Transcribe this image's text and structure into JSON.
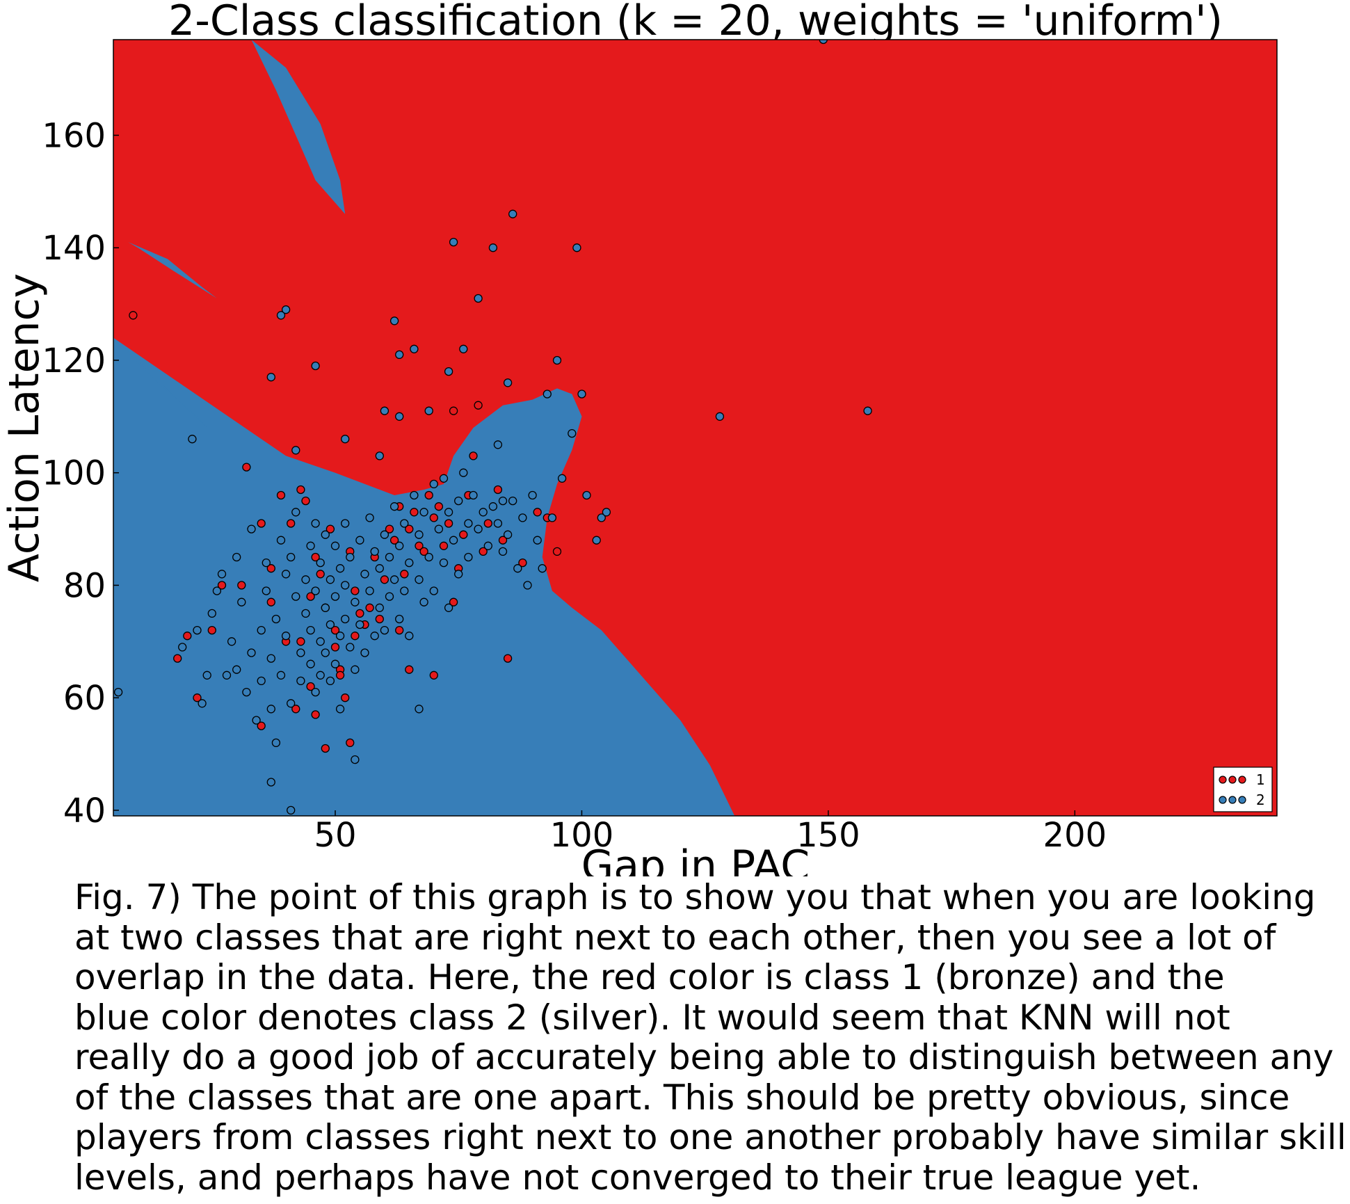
{
  "chart_data": {
    "type": "scatter",
    "title": "2-Class classification (k = 20, weights = 'uniform')",
    "xlabel": "Gap in PAC",
    "ylabel": "Action Latency",
    "xlim": [
      5,
      241
    ],
    "ylim": [
      39,
      177
    ],
    "xticks": [
      50,
      100,
      150,
      200
    ],
    "yticks": [
      40,
      60,
      80,
      100,
      120,
      140,
      160
    ],
    "grid": false,
    "legend": {
      "placement": "bottom-right",
      "entries": [
        "1",
        "2"
      ]
    },
    "colors": {
      "class_1": "#e41a1c",
      "class_2": "#377eb8",
      "marker_edge": "#000000"
    },
    "decision_regions": {
      "background_class": "1",
      "class_2_regions": [
        [
          [
            5,
            124
          ],
          [
            40,
            103
          ],
          [
            50,
            100
          ],
          [
            56,
            98
          ],
          [
            62,
            96
          ],
          [
            68,
            97
          ],
          [
            72,
            98
          ],
          [
            74,
            103
          ],
          [
            78,
            108
          ],
          [
            84,
            112
          ],
          [
            90,
            113
          ],
          [
            95,
            115
          ],
          [
            98,
            114
          ],
          [
            100,
            110
          ],
          [
            98,
            104
          ],
          [
            95,
            98
          ],
          [
            93,
            92
          ],
          [
            92,
            85
          ],
          [
            94,
            79
          ],
          [
            98,
            76
          ],
          [
            104,
            72
          ],
          [
            108,
            68
          ],
          [
            114,
            62
          ],
          [
            120,
            56
          ],
          [
            126,
            48
          ],
          [
            131,
            39
          ],
          [
            5,
            39
          ]
        ],
        [
          [
            33,
            177
          ],
          [
            40,
            172
          ],
          [
            47,
            162
          ],
          [
            51,
            152
          ],
          [
            52,
            146
          ],
          [
            46,
            152
          ],
          [
            42,
            160
          ],
          [
            38,
            168
          ]
        ],
        [
          [
            8,
            141
          ],
          [
            16,
            138
          ],
          [
            23,
            133
          ],
          [
            26,
            131
          ],
          [
            17,
            136
          ],
          [
            10,
            140
          ]
        ],
        [
          [
            5,
            124
          ],
          [
            14,
            116
          ],
          [
            22,
            110
          ],
          [
            24,
            108
          ],
          [
            18,
            113
          ],
          [
            10,
            120
          ]
        ]
      ]
    },
    "series": [
      {
        "name": "1",
        "color": "#e41a1c",
        "points": [
          [
            9,
            128
          ],
          [
            18,
            67
          ],
          [
            20,
            71
          ],
          [
            22,
            60
          ],
          [
            25,
            72
          ],
          [
            27,
            80
          ],
          [
            31,
            80
          ],
          [
            32,
            101
          ],
          [
            35,
            91
          ],
          [
            37,
            83
          ],
          [
            37,
            77
          ],
          [
            39,
            96
          ],
          [
            40,
            70
          ],
          [
            41,
            91
          ],
          [
            43,
            97
          ],
          [
            43,
            70
          ],
          [
            44,
            95
          ],
          [
            45,
            62
          ],
          [
            45,
            78
          ],
          [
            46,
            85
          ],
          [
            47,
            82
          ],
          [
            48,
            76
          ],
          [
            49,
            90
          ],
          [
            50,
            69
          ],
          [
            51,
            65
          ],
          [
            52,
            60
          ],
          [
            53,
            86
          ],
          [
            54,
            79
          ],
          [
            55,
            75
          ],
          [
            56,
            73
          ],
          [
            58,
            85
          ],
          [
            59,
            74
          ],
          [
            60,
            81
          ],
          [
            61,
            90
          ],
          [
            62,
            88
          ],
          [
            63,
            94
          ],
          [
            64,
            82
          ],
          [
            65,
            90
          ],
          [
            66,
            93
          ],
          [
            67,
            87
          ],
          [
            68,
            86
          ],
          [
            69,
            96
          ],
          [
            70,
            92
          ],
          [
            71,
            94
          ],
          [
            72,
            87
          ],
          [
            73,
            91
          ],
          [
            74,
            77
          ],
          [
            75,
            83
          ],
          [
            76,
            89
          ],
          [
            77,
            96
          ],
          [
            78,
            103
          ],
          [
            80,
            86
          ],
          [
            81,
            91
          ],
          [
            83,
            97
          ],
          [
            84,
            88
          ],
          [
            85,
            67
          ],
          [
            88,
            84
          ],
          [
            91,
            93
          ],
          [
            93,
            92
          ],
          [
            95,
            86
          ],
          [
            46,
            57
          ],
          [
            48,
            51
          ],
          [
            51,
            64
          ],
          [
            42,
            58
          ],
          [
            53,
            52
          ],
          [
            35,
            55
          ],
          [
            50,
            72
          ],
          [
            54,
            71
          ],
          [
            57,
            76
          ],
          [
            63,
            72
          ],
          [
            65,
            65
          ],
          [
            70,
            64
          ],
          [
            74,
            111
          ],
          [
            79,
            112
          ]
        ]
      },
      {
        "name": "2",
        "color": "#377eb8",
        "points": [
          [
            6,
            61
          ],
          [
            19,
            69
          ],
          [
            21,
            106
          ],
          [
            22,
            72
          ],
          [
            23,
            59
          ],
          [
            24,
            64
          ],
          [
            25,
            75
          ],
          [
            26,
            79
          ],
          [
            27,
            82
          ],
          [
            28,
            64
          ],
          [
            29,
            70
          ],
          [
            30,
            65
          ],
          [
            30,
            85
          ],
          [
            31,
            77
          ],
          [
            32,
            61
          ],
          [
            33,
            90
          ],
          [
            33,
            68
          ],
          [
            34,
            56
          ],
          [
            35,
            72
          ],
          [
            35,
            63
          ],
          [
            36,
            84
          ],
          [
            36,
            79
          ],
          [
            37,
            67
          ],
          [
            37,
            58
          ],
          [
            38,
            74
          ],
          [
            38,
            52
          ],
          [
            39,
            88
          ],
          [
            39,
            64
          ],
          [
            40,
            82
          ],
          [
            40,
            71
          ],
          [
            41,
            59
          ],
          [
            41,
            85
          ],
          [
            42,
            93
          ],
          [
            42,
            78
          ],
          [
            43,
            68
          ],
          [
            43,
            63
          ],
          [
            44,
            81
          ],
          [
            44,
            75
          ],
          [
            45,
            87
          ],
          [
            45,
            72
          ],
          [
            45,
            66
          ],
          [
            46,
            91
          ],
          [
            46,
            79
          ],
          [
            46,
            61
          ],
          [
            47,
            84
          ],
          [
            47,
            70
          ],
          [
            47,
            64
          ],
          [
            48,
            89
          ],
          [
            48,
            76
          ],
          [
            48,
            68
          ],
          [
            49,
            81
          ],
          [
            49,
            73
          ],
          [
            49,
            63
          ],
          [
            50,
            87
          ],
          [
            50,
            78
          ],
          [
            50,
            66
          ],
          [
            51,
            83
          ],
          [
            51,
            71
          ],
          [
            51,
            58
          ],
          [
            52,
            91
          ],
          [
            52,
            80
          ],
          [
            52,
            74
          ],
          [
            53,
            69
          ],
          [
            53,
            85
          ],
          [
            54,
            77
          ],
          [
            54,
            65
          ],
          [
            55,
            88
          ],
          [
            55,
            73
          ],
          [
            56,
            82
          ],
          [
            56,
            68
          ],
          [
            57,
            92
          ],
          [
            57,
            79
          ],
          [
            58,
            86
          ],
          [
            58,
            71
          ],
          [
            59,
            83
          ],
          [
            59,
            76
          ],
          [
            60,
            89
          ],
          [
            60,
            72
          ],
          [
            61,
            85
          ],
          [
            61,
            78
          ],
          [
            62,
            94
          ],
          [
            62,
            81
          ],
          [
            63,
            87
          ],
          [
            63,
            74
          ],
          [
            64,
            91
          ],
          [
            64,
            79
          ],
          [
            65,
            84
          ],
          [
            65,
            71
          ],
          [
            66,
            96
          ],
          [
            67,
            89
          ],
          [
            67,
            81
          ],
          [
            68,
            93
          ],
          [
            68,
            77
          ],
          [
            69,
            85
          ],
          [
            70,
            98
          ],
          [
            70,
            79
          ],
          [
            71,
            90
          ],
          [
            72,
            84
          ],
          [
            72,
            99
          ],
          [
            73,
            93
          ],
          [
            73,
            76
          ],
          [
            74,
            88
          ],
          [
            75,
            95
          ],
          [
            75,
            82
          ],
          [
            76,
            100
          ],
          [
            77,
            91
          ],
          [
            77,
            85
          ],
          [
            78,
            96
          ],
          [
            79,
            90
          ],
          [
            80,
            93
          ],
          [
            81,
            87
          ],
          [
            82,
            94
          ],
          [
            83,
            91
          ],
          [
            84,
            86
          ],
          [
            85,
            89
          ],
          [
            86,
            95
          ],
          [
            87,
            83
          ],
          [
            88,
            92
          ],
          [
            89,
            80
          ],
          [
            90,
            96
          ],
          [
            91,
            88
          ],
          [
            92,
            83
          ],
          [
            94,
            92
          ],
          [
            96,
            99
          ],
          [
            98,
            107
          ],
          [
            100,
            114
          ],
          [
            101,
            96
          ],
          [
            103,
            88
          ],
          [
            104,
            92
          ],
          [
            105,
            93
          ],
          [
            39,
            128
          ],
          [
            40,
            129
          ],
          [
            37,
            117
          ],
          [
            46,
            119
          ],
          [
            62,
            127
          ],
          [
            63,
            121
          ],
          [
            66,
            122
          ],
          [
            60,
            111
          ],
          [
            63,
            110
          ],
          [
            69,
            111
          ],
          [
            74,
            141
          ],
          [
            79,
            131
          ],
          [
            82,
            140
          ],
          [
            86,
            146
          ],
          [
            99,
            140
          ],
          [
            95,
            120
          ],
          [
            93,
            114
          ],
          [
            85,
            116
          ],
          [
            83,
            105
          ],
          [
            84,
            95
          ],
          [
            67,
            58
          ],
          [
            54,
            49
          ],
          [
            37,
            45
          ],
          [
            41,
            40
          ],
          [
            73,
            118
          ],
          [
            76,
            122
          ],
          [
            42,
            104
          ],
          [
            52,
            106
          ],
          [
            59,
            103
          ],
          [
            128,
            110
          ],
          [
            149,
            177
          ],
          [
            158,
            111
          ]
        ]
      }
    ]
  },
  "caption": {
    "lines": [
      "Fig. 7) The point of this graph is to show you that when you are looking",
      "at two classes that are right next to each other, then you see a lot of",
      "overlap in the data. Here, the red color is class 1 (bronze) and the",
      "blue color denotes class 2 (silver). It would seem that KNN will not",
      "really do a good job of accurately being able to distinguish between any",
      "of the classes that are one apart. This should be pretty obvious, since",
      "players from classes right next to one another probably have similar skill",
      "levels, and perhaps have not converged to their true league yet."
    ]
  }
}
